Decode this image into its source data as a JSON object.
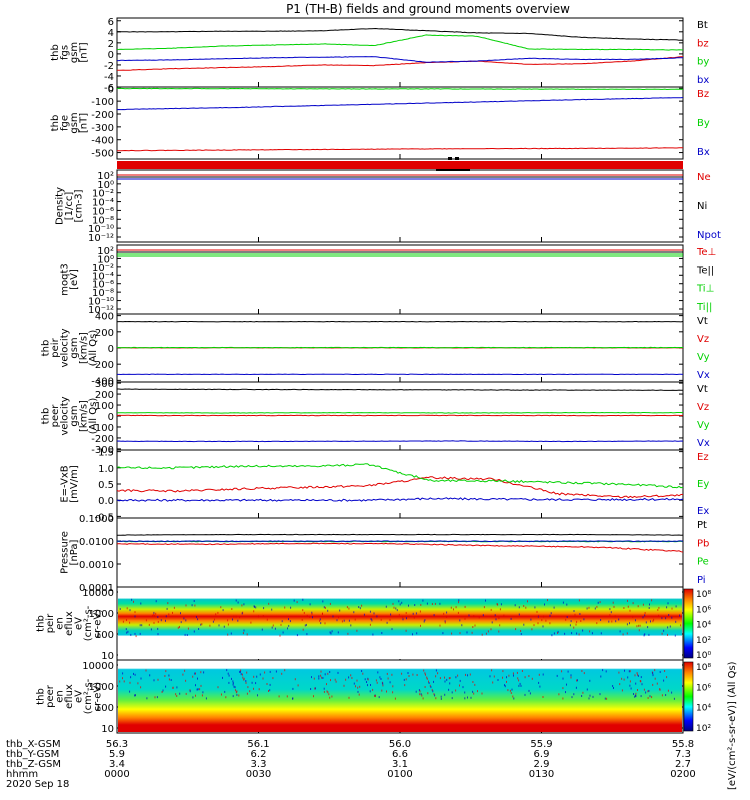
{
  "title": "P1 (TH-B) fields and ground moments overview",
  "colors": {
    "black": "#000000",
    "red": "#e00000",
    "green": "#00d000",
    "blue": "#0000c8"
  },
  "chart_data": [
    {
      "type": "line",
      "ylabel": [
        "thb",
        "fgs",
        "gsm",
        "[nT]"
      ],
      "yticks": [
        "6",
        "4",
        "2",
        "0",
        "-2",
        "-4",
        "-6"
      ],
      "ylim": [
        -6,
        6.5
      ],
      "series": [
        {
          "name": "Bt",
          "color": "black",
          "values": [
            4,
            4,
            4.1,
            4.1,
            4.2,
            4.6,
            4.2,
            3.8,
            3.7,
            3,
            2.7,
            2.5
          ]
        },
        {
          "name": "bz",
          "color": "red",
          "values": [
            -3,
            -2.7,
            -2.5,
            -2.3,
            -2,
            -2.1,
            -1.6,
            -1.3,
            -1.9,
            -1.8,
            -1.3,
            -0.5
          ]
        },
        {
          "name": "by",
          "color": "green",
          "values": [
            0.8,
            1,
            1.4,
            1.6,
            1.8,
            1.5,
            3.4,
            3.2,
            0.9,
            0.8,
            0.8,
            0.7
          ]
        },
        {
          "name": "bx",
          "color": "blue",
          "values": [
            -1.2,
            -1.1,
            -0.9,
            -0.7,
            -0.6,
            -0.5,
            -1.5,
            -1.3,
            -0.8,
            -1,
            -1,
            -0.7
          ]
        }
      ]
    },
    {
      "type": "line",
      "ylabel": [
        "thb",
        "fge",
        "gsm",
        "[nT]"
      ],
      "yticks": [
        "0",
        "-100",
        "-200",
        "-300",
        "-400",
        "-500"
      ],
      "ylim": [
        -550,
        10
      ],
      "series": [
        {
          "name": "Bz",
          "color": "red",
          "values": [
            -485,
            -480,
            -475,
            -470,
            -468,
            -463
          ]
        },
        {
          "name": "By",
          "color": "green",
          "values": [
            -2,
            -3,
            -5,
            -5,
            -7,
            -8
          ]
        },
        {
          "name": "Bx",
          "color": "blue",
          "values": [
            -165,
            -150,
            -130,
            -110,
            -90,
            -72
          ]
        }
      ]
    },
    {
      "type": "line",
      "ylabel": [
        "Density",
        "[1/cc]",
        "[cm-3]"
      ],
      "yticks": [
        "10²",
        "10⁰",
        "10⁻²",
        "10⁻⁴",
        "10⁻⁶",
        "10⁻⁸",
        "10⁻¹⁰",
        "10⁻¹²"
      ],
      "series": [
        {
          "name": "Ne",
          "color": "red"
        },
        {
          "name": "Ni",
          "color": "black"
        },
        {
          "name": "Npot",
          "color": "blue"
        }
      ]
    },
    {
      "type": "line",
      "ylabel": [
        "moqt3",
        "[eV]"
      ],
      "yticks": [
        "10²",
        "10⁰",
        "10⁻²",
        "10⁻⁴",
        "10⁻⁶",
        "10⁻⁸",
        "10⁻¹⁰",
        "10⁻¹²"
      ],
      "series": [
        {
          "name": "Te⊥",
          "color": "red"
        },
        {
          "name": "Te||",
          "color": "black"
        },
        {
          "name": "Ti⊥",
          "color": "green"
        },
        {
          "name": "Ti||",
          "color": "green"
        }
      ]
    },
    {
      "type": "line",
      "ylabel": [
        "thb",
        "peir",
        "velocity",
        "gsm",
        "[km/s]",
        "(All Qs)"
      ],
      "yticks": [
        "400",
        "200",
        "0",
        "-200",
        "-400"
      ],
      "ylim": [
        -420,
        420
      ],
      "series": [
        {
          "name": "Vt",
          "color": "black",
          "values": [
            325,
            325,
            325,
            325,
            325
          ]
        },
        {
          "name": "Vz",
          "color": "red",
          "values": [
            2,
            2,
            2,
            2,
            2
          ]
        },
        {
          "name": "Vy",
          "color": "green",
          "values": [
            5,
            5,
            5,
            5,
            6
          ]
        },
        {
          "name": "Vx",
          "color": "blue",
          "values": [
            -325,
            -325,
            -325,
            -325,
            -325
          ]
        }
      ]
    },
    {
      "type": "line",
      "ylabel": [
        "thb",
        "peer",
        "velocity",
        "gsm",
        "[km/s]",
        "(All Qs)"
      ],
      "yticks": [
        "300",
        "200",
        "100",
        "0",
        "-100",
        "-200",
        "-300"
      ],
      "ylim": [
        -310,
        310
      ],
      "series": [
        {
          "name": "Vt",
          "color": "black",
          "values": [
            245,
            242,
            240,
            238,
            236,
            235
          ]
        },
        {
          "name": "Vz",
          "color": "red",
          "values": [
            5,
            4,
            5,
            5,
            4,
            5
          ]
        },
        {
          "name": "Vy",
          "color": "green",
          "values": [
            30,
            28,
            30,
            28,
            30,
            30
          ]
        },
        {
          "name": "Vx",
          "color": "blue",
          "values": [
            -230,
            -232,
            -230,
            -228,
            -232,
            -228
          ]
        }
      ]
    },
    {
      "type": "line",
      "ylabel": [
        "E=-VxB",
        "[mV/m]"
      ],
      "yticks": [
        "1.5",
        "1.0",
        "0.5",
        "0.0",
        "-0.5"
      ],
      "ylim": [
        -0.55,
        1.55
      ],
      "series": [
        {
          "name": "Ez",
          "color": "red",
          "values": [
            0.3,
            0.28,
            0.35,
            0.4,
            0.45,
            0.7,
            0.65,
            0.2,
            0.1,
            0.15
          ]
        },
        {
          "name": "Ey",
          "color": "green",
          "values": [
            1,
            1,
            1.05,
            1.05,
            1.1,
            0.6,
            0.6,
            0.55,
            0.5,
            0.4
          ]
        },
        {
          "name": "Ex",
          "color": "blue",
          "values": [
            0,
            0,
            0,
            0,
            0,
            0.05,
            0.03,
            0.02,
            0.02,
            0.03
          ]
        }
      ]
    },
    {
      "type": "line",
      "ylabel": [
        "Pressure",
        "[nPa]"
      ],
      "yticks": [
        "0.1000",
        "0.0100",
        "0.0010",
        "0.0001"
      ],
      "ylim": [
        0.0001,
        0.1
      ],
      "yscale": "log",
      "series": [
        {
          "name": "Pt",
          "color": "black",
          "values": [
            0.018,
            0.019,
            0.019,
            0.019,
            0.019,
            0.019,
            0.018
          ]
        },
        {
          "name": "Pb",
          "color": "red",
          "values": [
            0.0075,
            0.0072,
            0.0078,
            0.0075,
            0.0062,
            0.0055,
            0.0035
          ]
        },
        {
          "name": "Pe",
          "color": "green",
          "values": [
            0.0095,
            0.0095,
            0.0095,
            0.0095,
            0.0095,
            0.0095,
            0.0095
          ]
        },
        {
          "name": "Pi",
          "color": "blue",
          "values": [
            0.0098,
            0.0098,
            0.0098,
            0.0098,
            0.0098,
            0.0098,
            0.0098
          ]
        }
      ]
    },
    {
      "type": "heatmap",
      "ylabel": [
        "thb",
        "peir",
        "en",
        "eflux",
        "eV",
        "(cm²-s-",
        "sr-eV)"
      ],
      "yticks": [
        "10000",
        "1000",
        "100",
        "10"
      ],
      "colorbar_ticks": [
        "10⁸",
        "10⁶",
        "10⁴",
        "10²",
        "10⁰"
      ],
      "colorbar_label": "[eV/(cm²-s-sr-eV)] (All Qs)"
    },
    {
      "type": "heatmap",
      "ylabel": [
        "thb",
        "peer",
        "en",
        "eflux",
        "eV",
        "(cm²-s-",
        "sr-eV)"
      ],
      "yticks": [
        "10000",
        "1000",
        "100",
        "10"
      ],
      "colorbar_ticks": [
        "10⁸",
        "10⁶",
        "10⁴",
        "10²"
      ],
      "colorbar_label": "[eV/(cm²-s-sr-eV)]"
    }
  ],
  "x_axis": {
    "row_labels": [
      "thb_X-GSM",
      "thb_Y-GSM",
      "thb_Z-GSM",
      "hhmm",
      "2020 Sep 18"
    ],
    "ticks": [
      {
        "x": "56.3",
        "y": "5.9",
        "z": "3.4",
        "hhmm": "0000"
      },
      {
        "x": "56.1",
        "y": "6.2",
        "z": "3.3",
        "hhmm": "0030"
      },
      {
        "x": "56.0",
        "y": "6.6",
        "z": "3.1",
        "hhmm": "0100"
      },
      {
        "x": "55.9",
        "y": "6.9",
        "z": "2.9",
        "hhmm": "0130"
      },
      {
        "x": "55.8",
        "y": "7.3",
        "z": "2.7",
        "hhmm": "0200"
      }
    ]
  }
}
